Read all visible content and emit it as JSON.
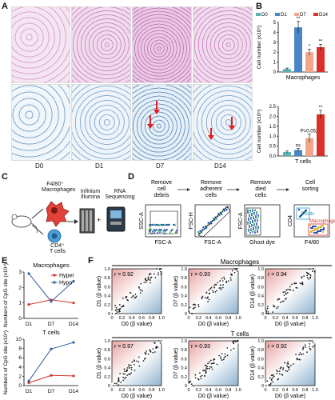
{
  "panels": {
    "A": "A",
    "B": "B",
    "C": "C",
    "D": "D",
    "E": "E",
    "F": "F"
  },
  "histology": {
    "timepoints": [
      "D0",
      "D1",
      "D7",
      "D14"
    ]
  },
  "panel_b": {
    "legend": [
      "D0",
      "D1",
      "D7",
      "D14"
    ],
    "colors": [
      "#5ab5b0",
      "#4a86c5",
      "#f2a58a",
      "#d9312a"
    ],
    "macro_ylabel": "Cell number (x10⁵)",
    "macro_xlabel": "Macrophages",
    "macro_ticks": [
      "0",
      "1",
      "2",
      "3",
      "4",
      "5"
    ],
    "tcell_ylabel": "Cell number (x10⁵)",
    "tcell_xlabel": "T cells",
    "tcell_ticks": [
      "0.0",
      "0.5",
      "1.0",
      "1.5",
      "2.0",
      "2.5"
    ],
    "sig_macro": [
      "**",
      "*",
      "**"
    ],
    "sig_tcell": [
      "ns",
      "P=0.052",
      "**"
    ]
  },
  "panel_c": {
    "macro_label": "F4/80⁺",
    "macro_label2": "Macrophages",
    "tcell_label": "CD4⁺",
    "tcell_label2": "T cells",
    "illumina1": "Infinium",
    "illumina2": "Illumina",
    "rna1": "RNA",
    "rna2": "Sequencing",
    "plus": "+"
  },
  "panel_d": {
    "steps": [
      {
        "l1": "Remove",
        "l2": "cell",
        "l3": "debris",
        "xl": "FSC-A",
        "yl": "SSC-A"
      },
      {
        "l1": "Remove",
        "l2": "adherent",
        "l3": "cells",
        "xl": "FSC-A",
        "yl": "FSC-H"
      },
      {
        "l1": "Remove",
        "l2": "died",
        "l3": "cells",
        "xl": "Ghost dye",
        "yl": "FSC-A"
      },
      {
        "l1": "Cell",
        "l2": "sorting",
        "l3": "",
        "xl": "F4/80",
        "yl": "CD4"
      }
    ],
    "gate_tcells": "T cells",
    "gate_macro": "Macrophages"
  },
  "chart_data": [
    {
      "type": "bar",
      "title": "",
      "xlabel": "Macrophages",
      "ylabel": "Cell number (x10⁵)",
      "ylim": [
        0,
        5
      ],
      "categories": [
        "D0",
        "D1",
        "D7",
        "D14"
      ],
      "values": [
        0.3,
        4.5,
        2.0,
        2.5
      ],
      "errors": [
        0.1,
        0.6,
        0.3,
        0.3
      ]
    },
    {
      "type": "bar",
      "title": "",
      "xlabel": "T cells",
      "ylabel": "Cell number (x10⁵)",
      "ylim": [
        0,
        2.5
      ],
      "categories": [
        "D0",
        "D1",
        "D7",
        "D14"
      ],
      "values": [
        0.2,
        0.3,
        0.9,
        2.1
      ],
      "errors": [
        0.05,
        0.08,
        0.2,
        0.2
      ]
    },
    {
      "type": "line",
      "title": "Macrophages",
      "xlabel": "",
      "ylabel": "Numbers of CpG site (x10⁴)",
      "x": [
        "D1",
        "D7",
        "D14"
      ],
      "ylim": [
        0,
        3
      ],
      "yticks": [
        "0",
        "1",
        "2",
        "3"
      ],
      "series": [
        {
          "name": "Hyper",
          "color": "#d8312a",
          "values": [
            0.9,
            1.2,
            1.0
          ]
        },
        {
          "name": "Hypo",
          "color": "#2f5e9e",
          "values": [
            2.9,
            1.1,
            2.4
          ]
        }
      ]
    },
    {
      "type": "line",
      "title": "T cells",
      "xlabel": "",
      "ylabel": "Numbers of CpG site (x10⁴)",
      "x": [
        "D1",
        "D7",
        "D14"
      ],
      "ylim": [
        0,
        10
      ],
      "yticks": [
        "0",
        "2",
        "4",
        "6",
        "8",
        "10"
      ],
      "series": [
        {
          "name": "Hyper",
          "color": "#d8312a",
          "values": [
            0.6,
            2.2,
            2.1
          ]
        },
        {
          "name": "Hypo",
          "color": "#2f5e9e",
          "values": [
            1.0,
            7.9,
            9.3
          ]
        }
      ]
    },
    {
      "type": "scatter",
      "title": "Macrophages",
      "xlabel": "D0 (β value)",
      "panels": [
        {
          "ylabel": "D1 (β value)",
          "r": "r = 0.92"
        },
        {
          "ylabel": "D7 (β value)",
          "r": "r = 0.93"
        },
        {
          "ylabel": "D14 (β value)",
          "r": "r = 0.94"
        }
      ],
      "xlim": [
        0,
        1
      ],
      "ylim": [
        0,
        1
      ],
      "ticks": [
        "0",
        "0.2",
        "0.4",
        "0.6",
        "0.8",
        "1.0"
      ]
    },
    {
      "type": "scatter",
      "title": "T cells",
      "xlabel": "D0 (β value)",
      "panels": [
        {
          "ylabel": "D1 (β value)",
          "r": "r = 0.97"
        },
        {
          "ylabel": "D7 (β value)",
          "r": "r = 0.93"
        },
        {
          "ylabel": "D14 (β value)",
          "r": "r = 0.92"
        }
      ],
      "xlim": [
        0,
        1
      ],
      "ylim": [
        0,
        1
      ],
      "ticks": [
        "0",
        "0.2",
        "0.4",
        "0.6",
        "0.8",
        "1.0"
      ]
    }
  ]
}
